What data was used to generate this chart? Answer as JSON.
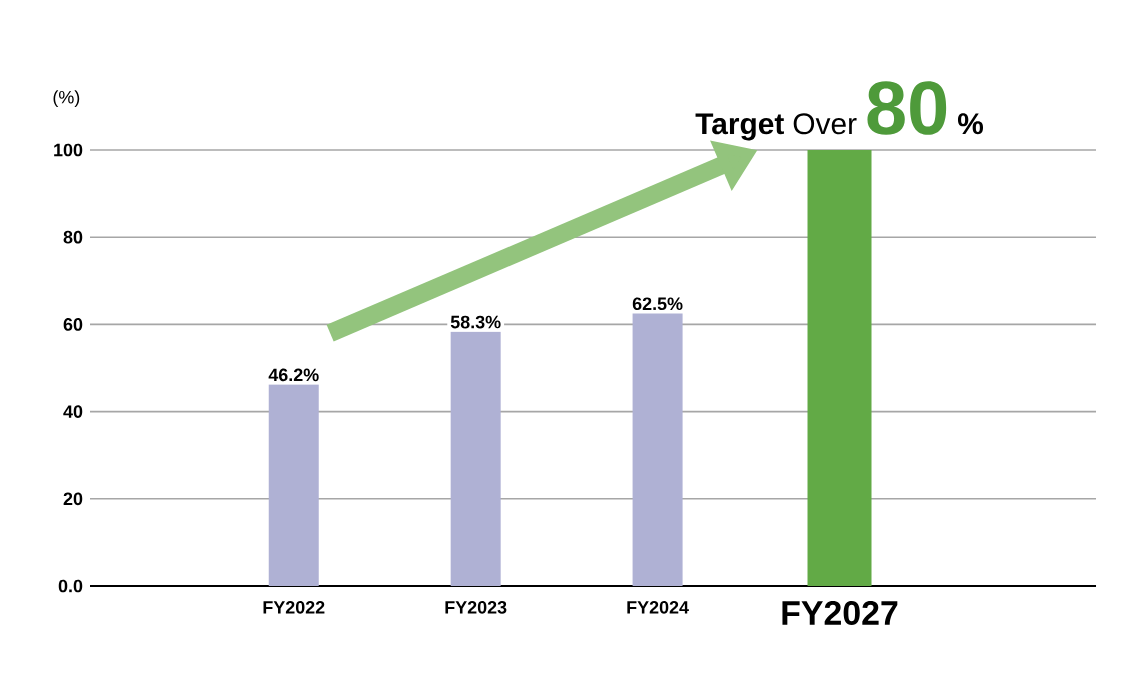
{
  "chart_data": {
    "type": "bar",
    "ylabel": "(%)",
    "categories": [
      "FY2022",
      "FY2023",
      "FY2024",
      "FY2027"
    ],
    "values": [
      46.2,
      58.3,
      62.5,
      100
    ],
    "colors": [
      "#afb1d4",
      "#afb1d4",
      "#afb1d4",
      "#62aa46"
    ],
    "value_labels": [
      "46.2%",
      "58.3%",
      "62.5%",
      null
    ],
    "annotations": [
      "Target",
      "Over",
      "80",
      "%"
    ],
    "ylim": [
      0,
      100
    ],
    "yticks": [
      {
        "value": 0,
        "label": "0.0"
      },
      20,
      40,
      60,
      80,
      100
    ],
    "grid": "y"
  }
}
